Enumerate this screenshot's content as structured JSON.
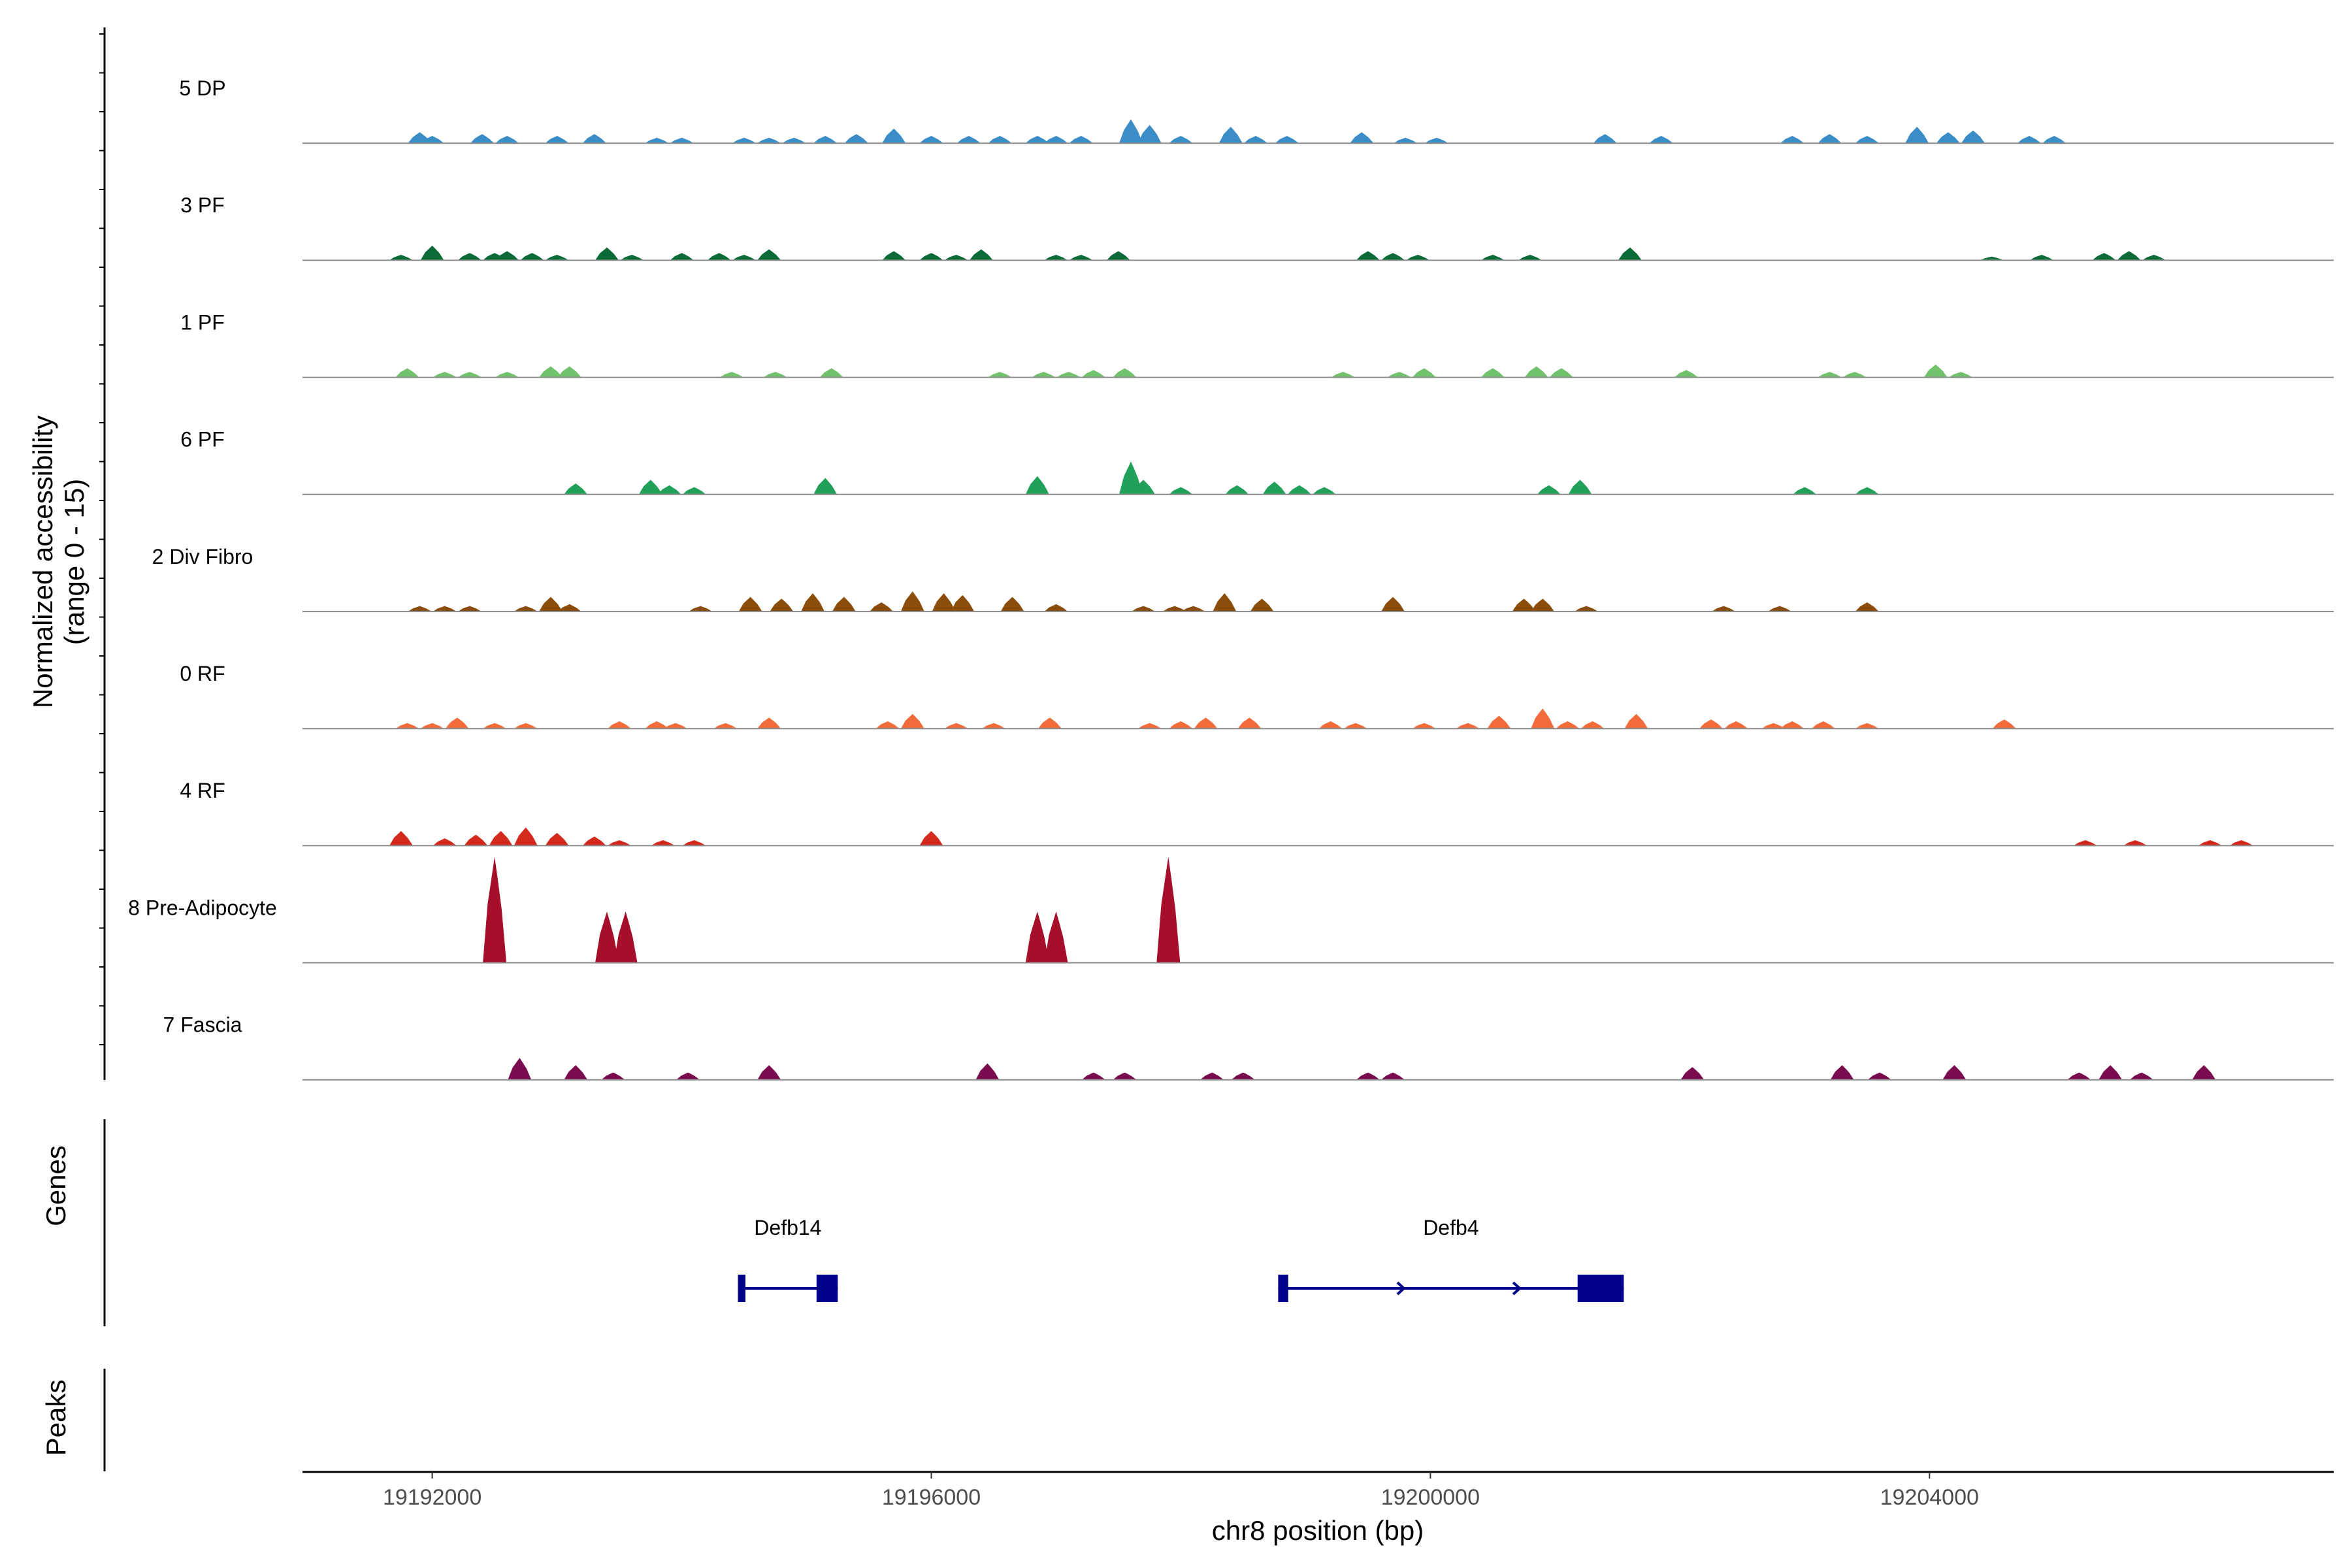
{
  "chart_data": {
    "type": "area",
    "title": "",
    "ylabel": "Normalized accessibility\n(range 0 - 15)",
    "xlabel": "chr8 position (bp)",
    "ylim": [
      0,
      15
    ],
    "xlim": [
      19190960,
      19207240
    ],
    "x_ticks": [
      19192000,
      19196000,
      19200000,
      19204000
    ],
    "x_tick_labels": [
      "19192000",
      "19196000",
      "19200000",
      "19204000"
    ],
    "series": [
      {
        "name": "5 DP",
        "color": "#3a8dc7",
        "peaks": [
          [
            19191900,
            6
          ],
          [
            19192000,
            4
          ],
          [
            19192400,
            5
          ],
          [
            19192600,
            4
          ],
          [
            19193000,
            4
          ],
          [
            19193300,
            5
          ],
          [
            19193800,
            3
          ],
          [
            19194000,
            3
          ],
          [
            19194500,
            3
          ],
          [
            19194700,
            3
          ],
          [
            19194900,
            3
          ],
          [
            19195150,
            4
          ],
          [
            19195400,
            5
          ],
          [
            19195700,
            8
          ],
          [
            19196000,
            4
          ],
          [
            19196300,
            4
          ],
          [
            19196550,
            4
          ],
          [
            19196850,
            4
          ],
          [
            19197000,
            4
          ],
          [
            19197200,
            4
          ],
          [
            19197600,
            13
          ],
          [
            19197750,
            10
          ],
          [
            19198000,
            4
          ],
          [
            19198400,
            9
          ],
          [
            19198600,
            4
          ],
          [
            19198850,
            4
          ],
          [
            19199450,
            6
          ],
          [
            19199800,
            3
          ],
          [
            19200050,
            3
          ],
          [
            19201400,
            5
          ],
          [
            19201850,
            4
          ],
          [
            19202900,
            4
          ],
          [
            19203200,
            5
          ],
          [
            19203500,
            4
          ],
          [
            19203900,
            9
          ],
          [
            19204150,
            6
          ],
          [
            19204350,
            7
          ],
          [
            19204800,
            4
          ],
          [
            19205000,
            4
          ]
        ]
      },
      {
        "name": "3 PF",
        "color": "#0a6b38",
        "peaks": [
          [
            19191750,
            3
          ],
          [
            19192000,
            8
          ],
          [
            19192300,
            4
          ],
          [
            19192500,
            4
          ],
          [
            19192600,
            5
          ],
          [
            19192800,
            4
          ],
          [
            19193000,
            3
          ],
          [
            19193400,
            7
          ],
          [
            19193600,
            3
          ],
          [
            19194000,
            4
          ],
          [
            19194300,
            4
          ],
          [
            19194500,
            3
          ],
          [
            19194700,
            6
          ],
          [
            19195700,
            5
          ],
          [
            19196000,
            4
          ],
          [
            19196200,
            3
          ],
          [
            19196400,
            6
          ],
          [
            19197000,
            3
          ],
          [
            19197200,
            3
          ],
          [
            19197500,
            5
          ],
          [
            19199500,
            5
          ],
          [
            19199700,
            4
          ],
          [
            19199900,
            3
          ],
          [
            19200500,
            3
          ],
          [
            19200800,
            3
          ],
          [
            19201600,
            7
          ],
          [
            19204500,
            2
          ],
          [
            19204900,
            3
          ],
          [
            19205400,
            4
          ],
          [
            19205600,
            5
          ],
          [
            19205800,
            3
          ]
        ]
      },
      {
        "name": "1 PF",
        "color": "#71c36b",
        "peaks": [
          [
            19191800,
            5
          ],
          [
            19192100,
            3
          ],
          [
            19192300,
            3
          ],
          [
            19192600,
            3
          ],
          [
            19192950,
            6
          ],
          [
            19193100,
            6
          ],
          [
            19194400,
            3
          ],
          [
            19194750,
            3
          ],
          [
            19195200,
            5
          ],
          [
            19196550,
            3
          ],
          [
            19196900,
            3
          ],
          [
            19197100,
            3
          ],
          [
            19197300,
            4
          ],
          [
            19197550,
            5
          ],
          [
            19199300,
            3
          ],
          [
            19199750,
            3
          ],
          [
            19199950,
            5
          ],
          [
            19200500,
            5
          ],
          [
            19200850,
            6
          ],
          [
            19201050,
            5
          ],
          [
            19202050,
            4
          ],
          [
            19203200,
            3
          ],
          [
            19203400,
            3
          ],
          [
            19204050,
            7
          ],
          [
            19204250,
            3
          ]
        ]
      },
      {
        "name": "6 PF",
        "color": "#21a05a",
        "peaks": [
          [
            19193150,
            6
          ],
          [
            19193750,
            8
          ],
          [
            19193900,
            5
          ],
          [
            19194100,
            4
          ],
          [
            19195150,
            9
          ],
          [
            19196850,
            10
          ],
          [
            19197600,
            18
          ],
          [
            19197700,
            8
          ],
          [
            19198000,
            4
          ],
          [
            19198450,
            5
          ],
          [
            19198750,
            7
          ],
          [
            19198950,
            5
          ],
          [
            19199150,
            4
          ],
          [
            19200950,
            5
          ],
          [
            19201200,
            8
          ],
          [
            19203000,
            4
          ],
          [
            19203500,
            4
          ]
        ]
      },
      {
        "name": "2 Div Fibro",
        "color": "#8b4d0b",
        "peaks": [
          [
            19191900,
            3
          ],
          [
            19192100,
            3
          ],
          [
            19192300,
            3
          ],
          [
            19192750,
            3
          ],
          [
            19192950,
            8
          ],
          [
            19193100,
            4
          ],
          [
            19194150,
            3
          ],
          [
            19194550,
            8
          ],
          [
            19194800,
            7
          ],
          [
            19195050,
            10
          ],
          [
            19195300,
            8
          ],
          [
            19195600,
            5
          ],
          [
            19195850,
            11
          ],
          [
            19196100,
            10
          ],
          [
            19196250,
            9
          ],
          [
            19196650,
            8
          ],
          [
            19197000,
            4
          ],
          [
            19197700,
            3
          ],
          [
            19197950,
            3
          ],
          [
            19198100,
            3
          ],
          [
            19198350,
            10
          ],
          [
            19198650,
            7
          ],
          [
            19199700,
            8
          ],
          [
            19200750,
            7
          ],
          [
            19200900,
            7
          ],
          [
            19201250,
            3
          ],
          [
            19202350,
            3
          ],
          [
            19202800,
            3
          ],
          [
            19203500,
            5
          ]
        ]
      },
      {
        "name": "0 RF",
        "color": "#f26b3b",
        "peaks": [
          [
            19191800,
            3
          ],
          [
            19192000,
            3
          ],
          [
            19192200,
            6
          ],
          [
            19192500,
            3
          ],
          [
            19192750,
            3
          ],
          [
            19193500,
            4
          ],
          [
            19193800,
            4
          ],
          [
            19193950,
            3
          ],
          [
            19194350,
            3
          ],
          [
            19194700,
            6
          ],
          [
            19195650,
            4
          ],
          [
            19195850,
            8
          ],
          [
            19196200,
            3
          ],
          [
            19196500,
            3
          ],
          [
            19196950,
            6
          ],
          [
            19197750,
            3
          ],
          [
            19198000,
            4
          ],
          [
            19198200,
            6
          ],
          [
            19198550,
            6
          ],
          [
            19199200,
            4
          ],
          [
            19199400,
            3
          ],
          [
            19199950,
            3
          ],
          [
            19200300,
            3
          ],
          [
            19200550,
            7
          ],
          [
            19200900,
            11
          ],
          [
            19201100,
            4
          ],
          [
            19201300,
            4
          ],
          [
            19201650,
            8
          ],
          [
            19202250,
            5
          ],
          [
            19202450,
            4
          ],
          [
            19202750,
            3
          ],
          [
            19202900,
            4
          ],
          [
            19203150,
            4
          ],
          [
            19203500,
            3
          ],
          [
            19204600,
            5
          ]
        ]
      },
      {
        "name": "4 RF",
        "color": "#d42a1e",
        "peaks": [
          [
            19191750,
            8
          ],
          [
            19192100,
            4
          ],
          [
            19192350,
            6
          ],
          [
            19192550,
            8
          ],
          [
            19192750,
            10
          ],
          [
            19193000,
            7
          ],
          [
            19193300,
            5
          ],
          [
            19193500,
            3
          ],
          [
            19193850,
            3
          ],
          [
            19194100,
            3
          ],
          [
            19196000,
            8
          ],
          [
            19205250,
            3
          ],
          [
            19205650,
            3
          ],
          [
            19206250,
            3
          ],
          [
            19206500,
            3
          ]
        ]
      },
      {
        "name": "8 Pre-Adipocyte",
        "color": "#a50f29",
        "peaks": [
          [
            19192500,
            58
          ],
          [
            19193400,
            28
          ],
          [
            19193550,
            28
          ],
          [
            19196850,
            28
          ],
          [
            19197000,
            28
          ],
          [
            19197900,
            58
          ]
        ]
      },
      {
        "name": "7 Fascia",
        "color": "#7a0b4e",
        "peaks": [
          [
            19192700,
            12
          ],
          [
            19193150,
            8
          ],
          [
            19193450,
            4
          ],
          [
            19194050,
            4
          ],
          [
            19194700,
            8
          ],
          [
            19196450,
            9
          ],
          [
            19197300,
            4
          ],
          [
            19197550,
            4
          ],
          [
            19198250,
            4
          ],
          [
            19198500,
            4
          ],
          [
            19199500,
            4
          ],
          [
            19199700,
            4
          ],
          [
            19202100,
            7
          ],
          [
            19203300,
            8
          ],
          [
            19203600,
            4
          ],
          [
            19204200,
            8
          ],
          [
            19205200,
            4
          ],
          [
            19205450,
            8
          ],
          [
            19205700,
            4
          ],
          [
            19206200,
            8
          ]
        ]
      }
    ],
    "genes": [
      {
        "name": "Defb14",
        "start": 19194450,
        "end": 19195250,
        "exons": [
          [
            19194450,
            19194510
          ],
          [
            19195080,
            19195250
          ]
        ],
        "strand": "+"
      },
      {
        "name": "Defb4",
        "start": 19198780,
        "end": 19201550,
        "exons": [
          [
            19198780,
            19198860
          ],
          [
            19201180,
            19201550
          ]
        ],
        "strand": "+"
      }
    ],
    "panels": [
      "Genes",
      "Peaks"
    ]
  }
}
